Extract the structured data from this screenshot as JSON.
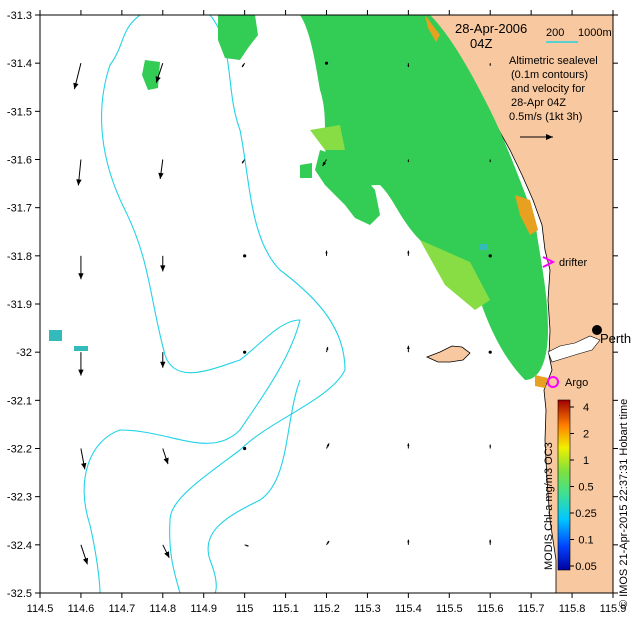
{
  "map": {
    "title_date": "28-Apr-2006",
    "title_time": "04Z",
    "bathy_labels": [
      "200",
      "1000m"
    ],
    "legend_lines": [
      "Altimetric sealevel",
      "(0.1m contours)",
      "and velocity for",
      "28-Apr 04Z",
      "0.5m/s (1kt 3h)"
    ],
    "places": {
      "perth": "Perth",
      "drifter": "drifter",
      "argo": "Argo"
    },
    "colorbar": {
      "ticks": [
        "4",
        "2",
        "1",
        "0.5",
        "0.25",
        "0.1",
        "0.05"
      ],
      "side_label": "MODIS Chl-a mg/m3 OC3"
    },
    "credit": "© IMOS 21-Apr-2015 22:37:31 Hobart time",
    "colors": {
      "land": "#f8c9a0",
      "bathy": "#22d3e6",
      "chl_green": "#33cc55",
      "drifter": "#ff00ff",
      "argo": "#ff00ff"
    }
  },
  "chart_data": {
    "type": "map",
    "xlim": [
      114.5,
      115.9
    ],
    "ylim": [
      -32.5,
      -31.3
    ],
    "x_ticks": [
      "114.5",
      "114.6",
      "114.7",
      "114.8",
      "114.9",
      "115",
      "115.1",
      "115.2",
      "115.3",
      "115.4",
      "115.5",
      "115.6",
      "115.7",
      "115.8",
      "115.9"
    ],
    "y_ticks": [
      "-31.3",
      "-31.4",
      "-31.5",
      "-31.6",
      "-31.7",
      "-31.8",
      "-31.9",
      "-32",
      "-32.1",
      "-32.2",
      "-32.3",
      "-32.4",
      "-32.5"
    ],
    "velocity_arrows": [
      {
        "lon": 114.6,
        "lat": -31.4,
        "u": -0.05,
        "v": -0.2
      },
      {
        "lon": 114.8,
        "lat": -31.4,
        "u": -0.05,
        "v": -0.15
      },
      {
        "lon": 115.0,
        "lat": -31.4,
        "u": -0.02,
        "v": -0.03
      },
      {
        "lon": 115.2,
        "lat": -31.4,
        "u": 0.0,
        "v": 0.0
      },
      {
        "lon": 115.4,
        "lat": -31.4,
        "u": 0.0,
        "v": -0.03
      },
      {
        "lon": 115.6,
        "lat": -31.4,
        "u": 0.0,
        "v": -0.02
      },
      {
        "lon": 114.6,
        "lat": -31.6,
        "u": -0.02,
        "v": -0.2
      },
      {
        "lon": 114.8,
        "lat": -31.6,
        "u": -0.02,
        "v": -0.15
      },
      {
        "lon": 115.0,
        "lat": -31.6,
        "u": -0.02,
        "v": -0.03
      },
      {
        "lon": 115.2,
        "lat": -31.6,
        "u": -0.03,
        "v": -0.05
      },
      {
        "lon": 115.4,
        "lat": -31.6,
        "u": 0.0,
        "v": -0.02
      },
      {
        "lon": 115.6,
        "lat": -31.6,
        "u": 0.0,
        "v": -0.02
      },
      {
        "lon": 114.6,
        "lat": -31.8,
        "u": 0.0,
        "v": -0.18
      },
      {
        "lon": 114.8,
        "lat": -31.8,
        "u": 0.0,
        "v": -0.12
      },
      {
        "lon": 115.0,
        "lat": -31.8,
        "u": 0.0,
        "v": -0.01
      },
      {
        "lon": 115.2,
        "lat": -31.8,
        "u": 0.0,
        "v": 0.04
      },
      {
        "lon": 115.4,
        "lat": -31.8,
        "u": 0.0,
        "v": 0.04
      },
      {
        "lon": 115.6,
        "lat": -31.8,
        "u": 0.0,
        "v": 0.0
      },
      {
        "lon": 114.6,
        "lat": -32.0,
        "u": 0.0,
        "v": -0.18
      },
      {
        "lon": 114.8,
        "lat": -32.0,
        "u": 0.0,
        "v": -0.12
      },
      {
        "lon": 115.0,
        "lat": -32.0,
        "u": -0.01,
        "v": -0.01
      },
      {
        "lon": 115.2,
        "lat": -32.0,
        "u": 0.01,
        "v": 0.04
      },
      {
        "lon": 115.4,
        "lat": -32.0,
        "u": 0.0,
        "v": 0.05
      },
      {
        "lon": 115.6,
        "lat": -32.0,
        "u": 0.0,
        "v": 0.0
      },
      {
        "lon": 114.6,
        "lat": -32.2,
        "u": 0.03,
        "v": -0.16
      },
      {
        "lon": 114.8,
        "lat": -32.2,
        "u": 0.04,
        "v": -0.12
      },
      {
        "lon": 115.0,
        "lat": -32.2,
        "u": 0.0,
        "v": 0.0
      },
      {
        "lon": 115.2,
        "lat": -32.2,
        "u": 0.02,
        "v": 0.04
      },
      {
        "lon": 115.4,
        "lat": -32.2,
        "u": 0.0,
        "v": 0.04
      },
      {
        "lon": 115.6,
        "lat": -32.2,
        "u": 0.0,
        "v": 0.03
      },
      {
        "lon": 114.6,
        "lat": -32.4,
        "u": 0.05,
        "v": -0.15
      },
      {
        "lon": 114.8,
        "lat": -32.4,
        "u": 0.05,
        "v": -0.1
      },
      {
        "lon": 115.0,
        "lat": -32.4,
        "u": 0.03,
        "v": -0.01
      },
      {
        "lon": 115.2,
        "lat": -32.4,
        "u": 0.02,
        "v": 0.03
      },
      {
        "lon": 115.4,
        "lat": -32.4,
        "u": 0.0,
        "v": 0.04
      },
      {
        "lon": 115.6,
        "lat": -32.4,
        "u": 0.0,
        "v": 0.04
      }
    ],
    "markers": [
      {
        "name": "perth",
        "lon": 115.86,
        "lat": -31.95
      },
      {
        "name": "drifter",
        "lon": 115.74,
        "lat": -31.81
      },
      {
        "name": "argo",
        "lon": 115.75,
        "lat": -32.07
      }
    ]
  }
}
